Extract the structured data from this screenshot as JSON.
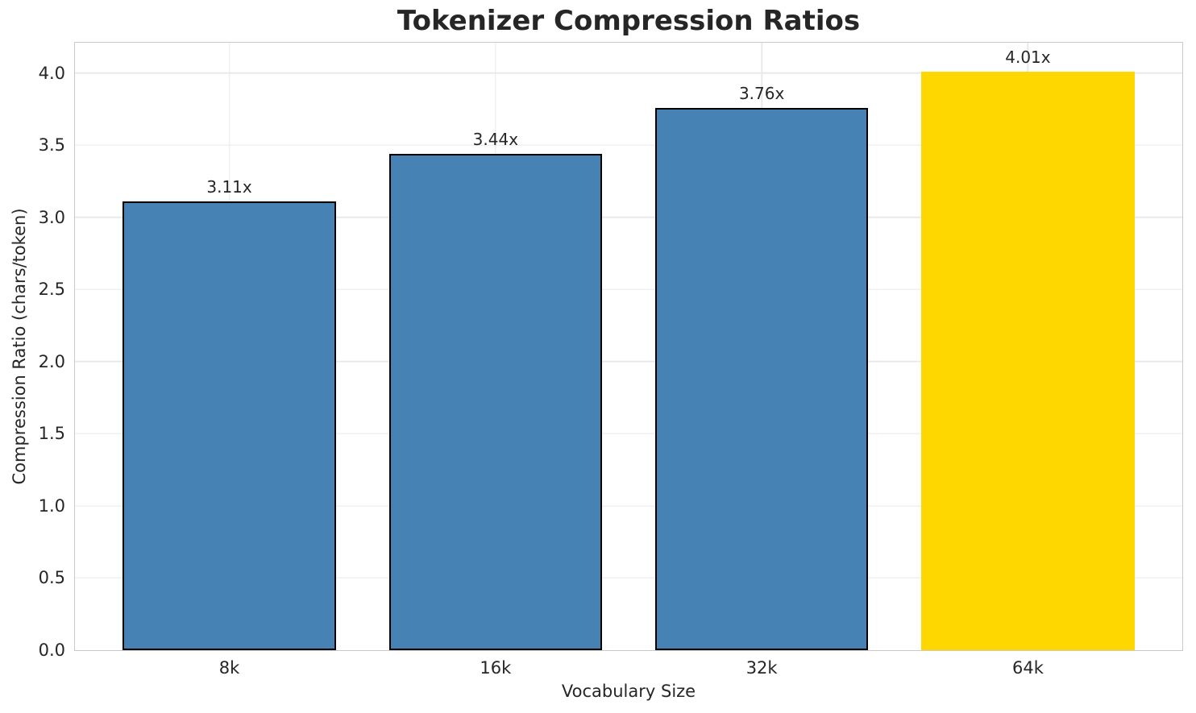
{
  "chart_data": {
    "type": "bar",
    "title": "Tokenizer Compression Ratios",
    "xlabel": "Vocabulary Size",
    "ylabel": "Compression Ratio (chars/token)",
    "categories": [
      "8k",
      "16k",
      "32k",
      "64k"
    ],
    "values": [
      3.11,
      3.44,
      3.76,
      4.01
    ],
    "bar_labels": [
      "3.11x",
      "3.44x",
      "3.76x",
      "4.01x"
    ],
    "bar_colors": [
      "#4682b4",
      "#4682b4",
      "#4682b4",
      "#ffd700"
    ],
    "bar_edge_colors": [
      "#000000",
      "#000000",
      "#000000",
      "none"
    ],
    "highlight_category": "64k",
    "yticks": [
      0,
      0.5,
      1,
      1.5,
      2,
      2.5,
      3,
      3.5,
      4
    ],
    "ytick_labels": [
      "0.0",
      "0.5",
      "1.0",
      "1.5",
      "2.0",
      "2.5",
      "3.0",
      "3.5",
      "4.0"
    ],
    "ylim": [
      0,
      4.21
    ],
    "xlim": [
      -0.58,
      3.58
    ],
    "bar_width": 0.8,
    "grid": {
      "horizontal": true,
      "vertical": true
    },
    "legend_position": "none",
    "colors": {
      "background": "#ffffff",
      "grid": "#e9e9e9",
      "spine": "#c9c9c9",
      "text": "#262626",
      "bar_default": "#4682b4",
      "bar_highlight": "#ffd700"
    }
  }
}
